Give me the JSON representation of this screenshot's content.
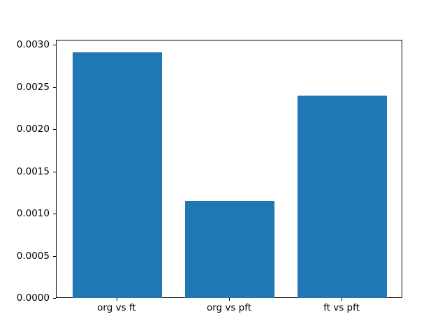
{
  "figure": {
    "background": "#ffffff",
    "spine_color": "#000000",
    "tick_color": "#000000"
  },
  "chart_data": {
    "type": "bar",
    "title": "",
    "xlabel": "",
    "ylabel": "",
    "categories": [
      "org vs ft",
      "org vs pft",
      "ft vs pft"
    ],
    "values": [
      0.00292,
      0.00116,
      0.00241
    ],
    "bar_color": "#1f77b4",
    "ylim": [
      0,
      0.003061
    ],
    "xlim": [
      -0.54,
      2.54
    ],
    "bar_width": 0.8,
    "ytick_labels": [
      "0.0000",
      "0.0005",
      "0.0010",
      "0.0015",
      "0.0020",
      "0.0025",
      "0.0030"
    ],
    "grid": false,
    "legend": null
  }
}
